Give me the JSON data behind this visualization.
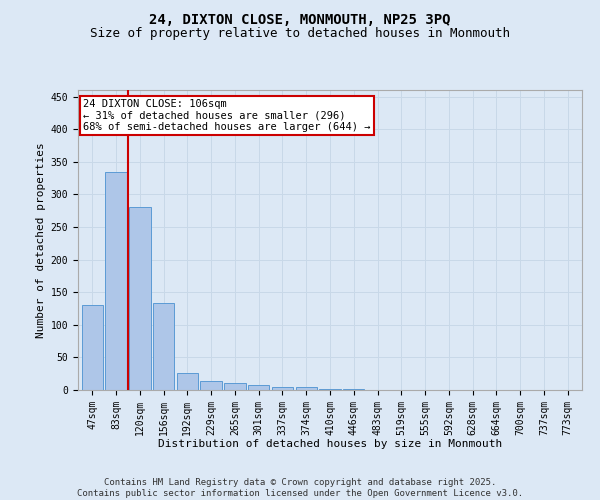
{
  "title_line1": "24, DIXTON CLOSE, MONMOUTH, NP25 3PQ",
  "title_line2": "Size of property relative to detached houses in Monmouth",
  "xlabel": "Distribution of detached houses by size in Monmouth",
  "ylabel": "Number of detached properties",
  "categories": [
    "47sqm",
    "83sqm",
    "120sqm",
    "156sqm",
    "192sqm",
    "229sqm",
    "265sqm",
    "301sqm",
    "337sqm",
    "374sqm",
    "410sqm",
    "446sqm",
    "483sqm",
    "519sqm",
    "555sqm",
    "592sqm",
    "628sqm",
    "664sqm",
    "700sqm",
    "737sqm",
    "773sqm"
  ],
  "values": [
    130,
    335,
    280,
    133,
    26,
    14,
    10,
    7,
    5,
    5,
    2,
    1,
    0,
    0,
    0,
    0,
    0,
    0,
    0,
    0,
    0
  ],
  "bar_color": "#aec6e8",
  "bar_edge_color": "#5b9bd5",
  "red_line_x": 1.5,
  "annotation_text": "24 DIXTON CLOSE: 106sqm\n← 31% of detached houses are smaller (296)\n68% of semi-detached houses are larger (644) →",
  "annotation_box_color": "#ffffff",
  "annotation_box_edge_color": "#cc0000",
  "red_line_color": "#cc0000",
  "grid_color": "#c8d8e8",
  "background_color": "#dce8f5",
  "plot_background_color": "#dce8f5",
  "ylim": [
    0,
    460
  ],
  "yticks": [
    0,
    50,
    100,
    150,
    200,
    250,
    300,
    350,
    400,
    450
  ],
  "footer_line1": "Contains HM Land Registry data © Crown copyright and database right 2025.",
  "footer_line2": "Contains public sector information licensed under the Open Government Licence v3.0.",
  "title_fontsize": 10,
  "subtitle_fontsize": 9,
  "axis_label_fontsize": 8,
  "tick_fontsize": 7,
  "annotation_fontsize": 7.5,
  "footer_fontsize": 6.5
}
